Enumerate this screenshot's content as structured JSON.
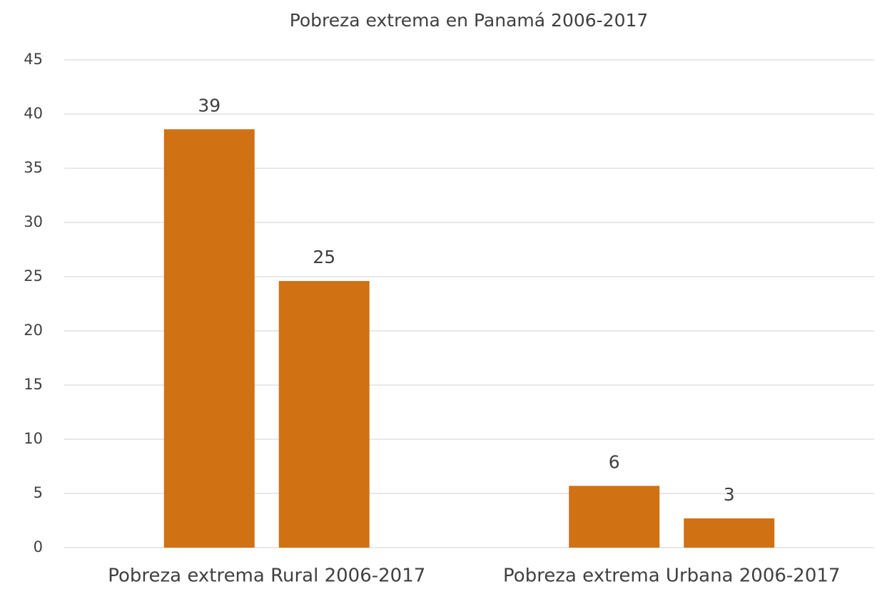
{
  "chart_data": {
    "type": "bar",
    "title": "Pobreza extrema en Panamá 2006-2017",
    "categories": [
      "Pobreza extrema Rural 2006-2017",
      "Pobreza extrema Urbana 2006-2017"
    ],
    "series": [
      {
        "color": "#d07114",
        "values": [
          38.6,
          5.7
        ],
        "value_labels": [
          "39",
          "6"
        ]
      },
      {
        "color": "#d07114",
        "values": [
          24.6,
          2.7
        ],
        "value_labels": [
          "25",
          "3"
        ]
      }
    ],
    "ylim": [
      0,
      45
    ],
    "yticks": [
      0,
      5,
      10,
      15,
      20,
      25,
      30,
      35,
      40,
      45
    ],
    "grid": true
  }
}
